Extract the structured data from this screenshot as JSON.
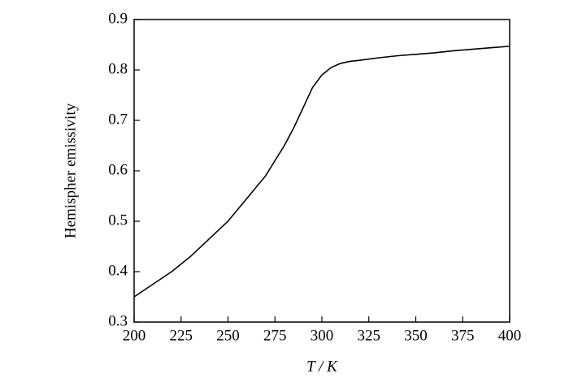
{
  "chart_data": {
    "type": "line",
    "xlabel": "T / K",
    "ylabel": "Hemispher emissivity",
    "x": [
      200,
      210,
      220,
      230,
      240,
      250,
      260,
      270,
      280,
      285,
      290,
      295,
      300,
      305,
      310,
      315,
      320,
      330,
      340,
      350,
      360,
      370,
      380,
      390,
      400
    ],
    "series": [
      {
        "color": "#000000",
        "values": [
          0.35,
          0.375,
          0.4,
          0.43,
          0.465,
          0.5,
          0.545,
          0.59,
          0.65,
          0.685,
          0.725,
          0.765,
          0.79,
          0.805,
          0.813,
          0.817,
          0.819,
          0.824,
          0.828,
          0.831,
          0.834,
          0.838,
          0.841,
          0.844,
          0.847
        ]
      }
    ],
    "xlim": [
      200,
      400
    ],
    "xticks": [
      200,
      225,
      250,
      275,
      300,
      325,
      350,
      375,
      400
    ],
    "ylim": [
      0.3,
      0.9
    ],
    "yticks": [
      0.3,
      0.4,
      0.5,
      0.6,
      0.7,
      0.8,
      0.9
    ]
  }
}
